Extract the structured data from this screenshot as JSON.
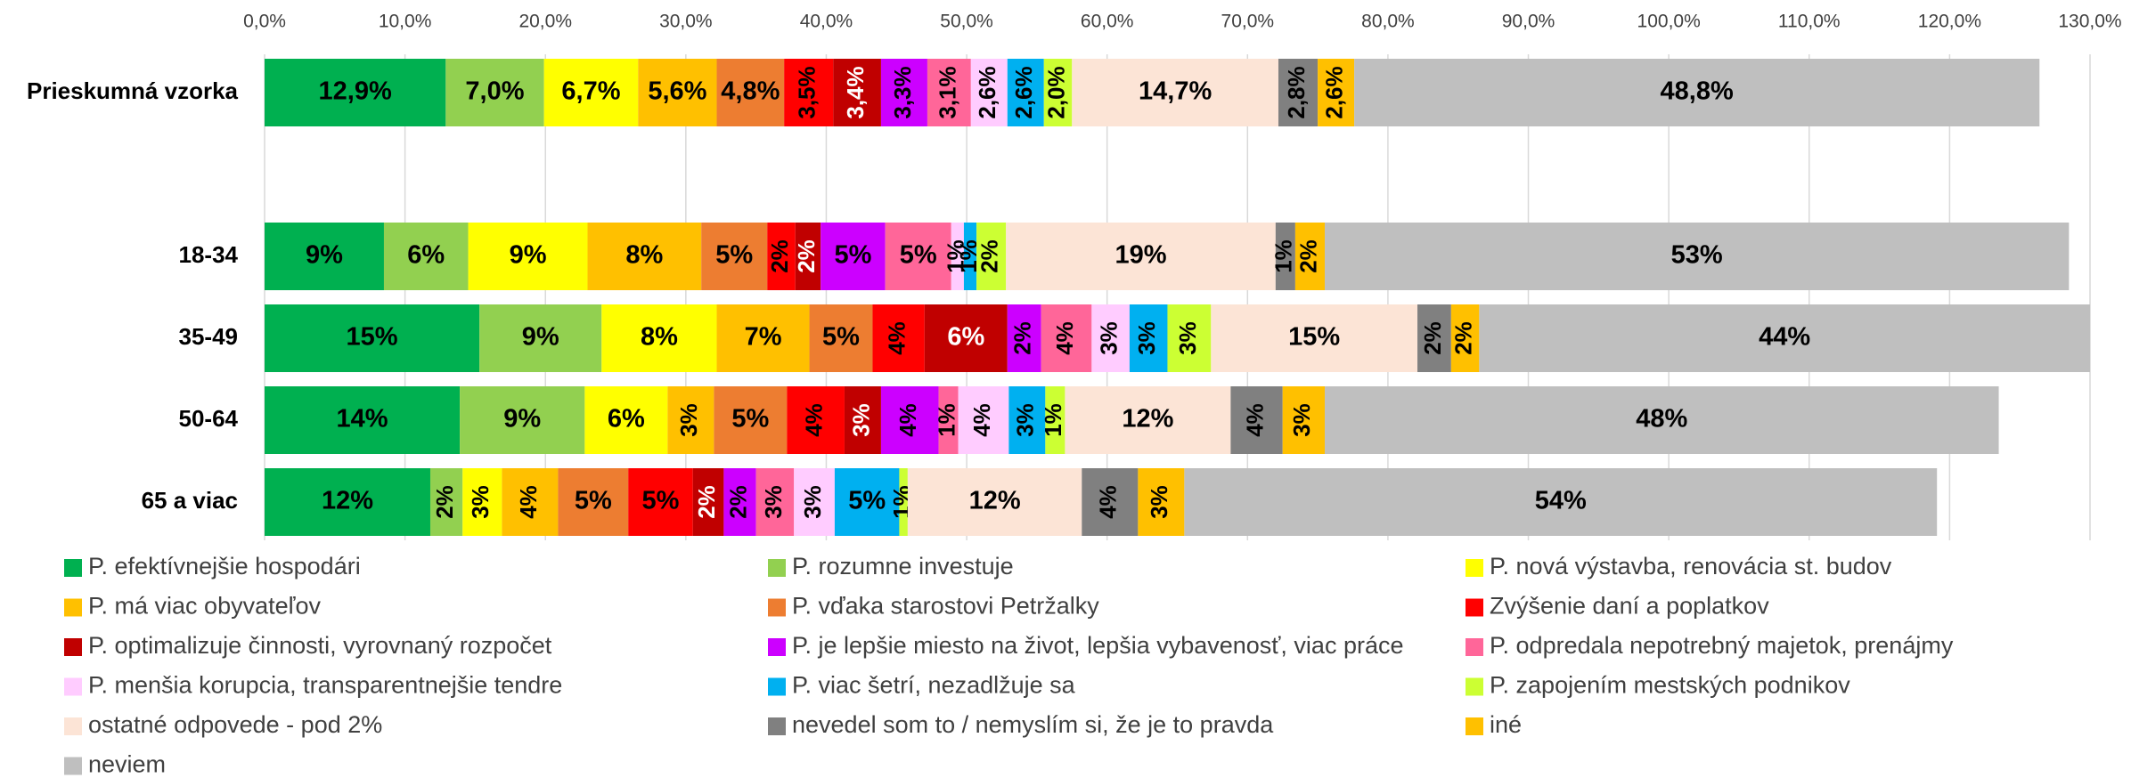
{
  "chart_data": {
    "type": "stacked_barh",
    "categories": [
      "Prieskumná vzorka",
      null,
      "18-34",
      "35-49",
      "50-64",
      "65 a viac"
    ],
    "xlim": [
      0,
      130
    ],
    "xticks": [
      {
        "value": 0,
        "label": "0,0%"
      },
      {
        "value": 10,
        "label": "10,0%"
      },
      {
        "value": 20,
        "label": "20,0%"
      },
      {
        "value": 30,
        "label": "30,0%"
      },
      {
        "value": 40,
        "label": "40,0%"
      },
      {
        "value": 50,
        "label": "50,0%"
      },
      {
        "value": 60,
        "label": "60,0%"
      },
      {
        "value": 70,
        "label": "70,0%"
      },
      {
        "value": 80,
        "label": "80,0%"
      },
      {
        "value": 90,
        "label": "90,0%"
      },
      {
        "value": 100,
        "label": "100,0%"
      },
      {
        "value": 110,
        "label": "110,0%"
      },
      {
        "value": 120,
        "label": "120,0%"
      },
      {
        "value": 130,
        "label": "130,0%"
      }
    ],
    "grid": true,
    "legend": "bottom",
    "series": [
      {
        "name": "P. efektívnejšie hospodári",
        "color": "#00b050",
        "values": [
          12.9,
          null,
          8.5,
          15.3,
          13.9,
          11.8
        ],
        "value_labels": [
          "12,9%",
          null,
          "9%",
          "15%",
          "14%",
          "12%"
        ]
      },
      {
        "name": "P. rozumne investuje",
        "color": "#92d050",
        "values": [
          7.0,
          null,
          6.0,
          8.7,
          8.9,
          2.3
        ],
        "value_labels": [
          "7,0%",
          null,
          "6%",
          "9%",
          "9%",
          "2%"
        ]
      },
      {
        "name": "P. nová výstavba, renovácia st. budov",
        "color": "#ffff00",
        "values": [
          6.7,
          null,
          8.5,
          8.2,
          5.9,
          2.8
        ],
        "value_labels": [
          "6,7%",
          null,
          "9%",
          "8%",
          "6%",
          "3%"
        ]
      },
      {
        "name": "P. má viac obyvateľov",
        "color": "#ffc000",
        "values": [
          5.6,
          null,
          8.1,
          6.6,
          3.3,
          4.0
        ],
        "value_labels": [
          "5,6%",
          null,
          "8%",
          "7%",
          "3%",
          "4%"
        ]
      },
      {
        "name": "P. vďaka starostovi Petržalky",
        "color": "#ed7d31",
        "values": [
          4.8,
          null,
          4.7,
          4.5,
          5.2,
          5.0
        ],
        "value_labels": [
          "4,8%",
          null,
          "5%",
          "5%",
          "5%",
          "5%"
        ]
      },
      {
        "name": "Zvýšenie daní a poplatkov",
        "color": "#ff0000",
        "values": [
          3.5,
          null,
          2.0,
          3.7,
          4.1,
          4.6
        ],
        "value_labels": [
          "3,5%",
          null,
          "2%",
          "4%",
          "4%",
          "5%"
        ]
      },
      {
        "name": "P. optimalizuje činnosti, vyrovnaný rozpočet",
        "color": "#c00000",
        "values": [
          3.4,
          null,
          1.8,
          5.9,
          2.6,
          2.2
        ],
        "value_labels": [
          "3,4%",
          null,
          "2%",
          "6%",
          "3%",
          "2%"
        ]
      },
      {
        "name": "P. je lepšie miesto na život, lepšia vybavenosť, viac práce",
        "color": "#cc00ff",
        "values": [
          3.3,
          null,
          4.6,
          2.4,
          4.1,
          2.3
        ],
        "value_labels": [
          "3,3%",
          null,
          "5%",
          "2%",
          "4%",
          "2%"
        ]
      },
      {
        "name": "P. odpredala nepotrebný majetok, prenájmy",
        "color": "#ff6699",
        "values": [
          3.1,
          null,
          4.7,
          3.6,
          1.4,
          2.7
        ],
        "value_labels": [
          "3,1%",
          null,
          "5%",
          "4%",
          "1%",
          "3%"
        ]
      },
      {
        "name": "P. menšia korupcia, transparentnejšie tendre",
        "color": "#ffccff",
        "values": [
          2.6,
          null,
          0.9,
          2.7,
          3.6,
          2.9
        ],
        "value_labels": [
          "2,6%",
          null,
          "1%",
          "3%",
          "4%",
          "3%"
        ]
      },
      {
        "name": "P. viac šetrí, nezadlžuje sa",
        "color": "#00b0f0",
        "values": [
          2.6,
          null,
          0.9,
          2.7,
          2.6,
          4.6
        ],
        "value_labels": [
          "2,6%",
          null,
          "1%",
          "3%",
          "3%",
          "5%"
        ]
      },
      {
        "name": "P. zapojením mestských podnikov",
        "color": "#ccff33",
        "values": [
          2.0,
          null,
          2.1,
          3.1,
          1.4,
          0.6
        ],
        "value_labels": [
          "2,0%",
          null,
          "2%",
          "3%",
          "1%",
          "1%"
        ]
      },
      {
        "name": "ostatné odpovede - pod 2%",
        "color": "#fce4d6",
        "values": [
          14.7,
          null,
          19.2,
          14.7,
          11.8,
          12.4
        ],
        "value_labels": [
          "14,7%",
          null,
          "19%",
          "15%",
          "12%",
          "12%"
        ]
      },
      {
        "name": "nevedel som to / nemyslím si, že je to pravda",
        "color": "#808080",
        "values": [
          2.8,
          null,
          1.4,
          2.4,
          3.7,
          4.0
        ],
        "value_labels": [
          "2,8%",
          null,
          "1%",
          "2%",
          "4%",
          "4%"
        ]
      },
      {
        "name": "iné",
        "color": "#ffc000",
        "values": [
          2.6,
          null,
          2.1,
          2.0,
          3.0,
          3.3
        ],
        "value_labels": [
          "2,6%",
          null,
          "2%",
          "2%",
          "3%",
          "3%"
        ]
      },
      {
        "name": "neviem",
        "color": "#bfbfbf",
        "values": [
          48.8,
          null,
          53.0,
          43.5,
          48.0,
          53.6
        ],
        "value_labels": [
          "48,8%",
          null,
          "53%",
          "44%",
          "48%",
          "54%"
        ]
      }
    ]
  }
}
